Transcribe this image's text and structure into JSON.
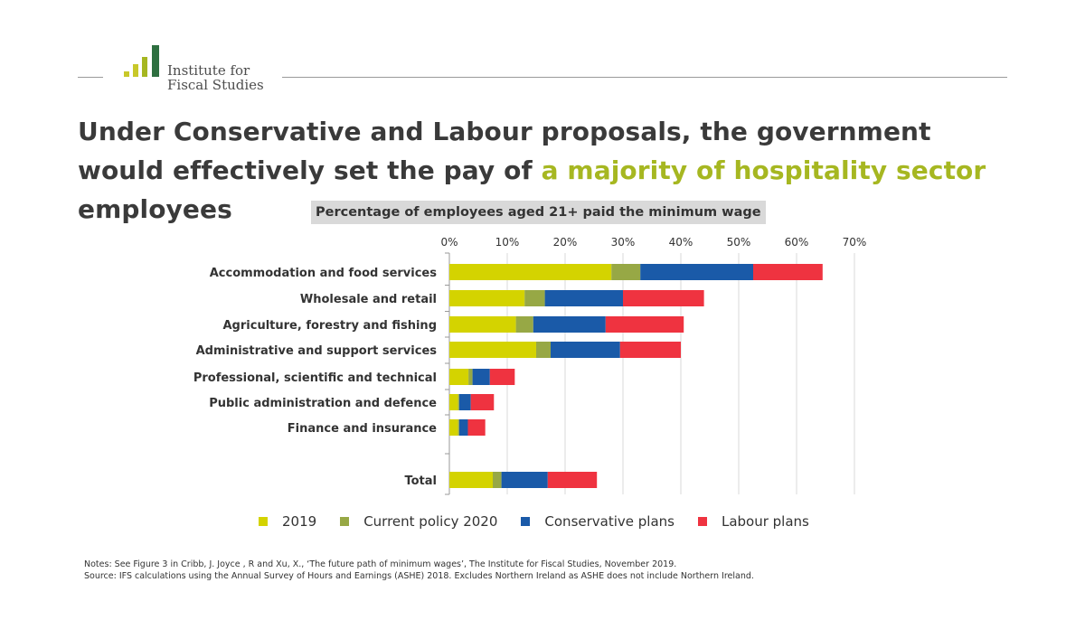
{
  "header": {
    "logo_text_line1": "Institute for",
    "logo_text_line2": "Fiscal Studies",
    "headline_part1": "Under Conservative and Labour proposals, the government would effectively set the pay of ",
    "headline_highlight": "a majority of hospitality sector",
    "headline_part2": " employees"
  },
  "colors": {
    "2019": "#d4d300",
    "current_policy_2020": "#97a845",
    "conservative": "#1a5aa8",
    "labour": "#ef3340",
    "highlight": "#a6b721",
    "logo_dark": "#2e6f40",
    "logo_light": "#c8c82a"
  },
  "chart_data": {
    "type": "bar",
    "orientation": "horizontal",
    "stacked": true,
    "title": "Percentage of employees aged 21+ paid the minimum wage",
    "categories": [
      "Accommodation and food services",
      "Wholesale and retail",
      "Agriculture, forestry and fishing",
      "Administrative and support services",
      "Professional, scientific and technical",
      "Public administration and defence",
      "Finance and insurance",
      "Total"
    ],
    "series": [
      {
        "name": "2019",
        "values": [
          28,
          13,
          11.5,
          15,
          3.3,
          1.5,
          1.5,
          7.5
        ]
      },
      {
        "name": "Current policy 2020",
        "values": [
          5,
          3.5,
          3,
          2.5,
          0.7,
          0.2,
          0.2,
          1.5
        ]
      },
      {
        "name": "Conservative plans",
        "values": [
          19.5,
          13.5,
          12.5,
          12,
          3,
          2,
          1.5,
          8
        ]
      },
      {
        "name": "Labour plans",
        "values": [
          12,
          14,
          13.5,
          10.5,
          4.3,
          4,
          3,
          8.5
        ]
      }
    ],
    "xlim": [
      0,
      70
    ],
    "xticks": [
      "0%",
      "10%",
      "20%",
      "30%",
      "40%",
      "50%",
      "60%",
      "70%"
    ],
    "grid": true,
    "legend_position": "bottom"
  },
  "legend": {
    "items": [
      "2019",
      "Current policy 2020",
      "Conservative plans",
      "Labour plans"
    ]
  },
  "notes": {
    "line1": "Notes: See Figure 3 in Cribb, J. Joyce , R and Xu, X., ‘The future path of minimum wages’, The Institute for Fiscal Studies, November 2019.",
    "line2": "Source: IFS calculations using the Annual Survey of Hours and Earnings (ASHE) 2018. Excludes Northern Ireland as ASHE does not include Northern Ireland."
  }
}
